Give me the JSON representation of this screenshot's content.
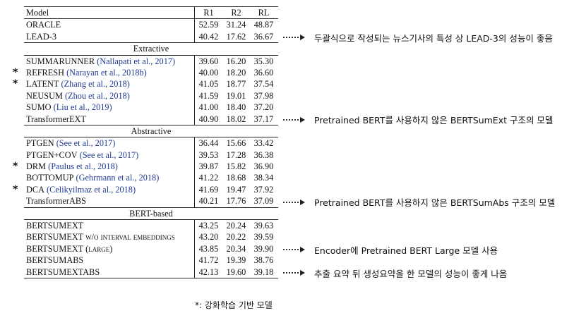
{
  "table": {
    "headers": [
      "Model",
      "R1",
      "R2",
      "RL"
    ],
    "groups": [
      {
        "title": "",
        "rows": [
          {
            "name": "ORACLE",
            "cite": "",
            "r1": "52.59",
            "r2": "31.24",
            "rl": "48.87",
            "sc": true,
            "star": false
          },
          {
            "name": "LEAD-3",
            "cite": "",
            "r1": "40.42",
            "r2": "17.62",
            "rl": "36.67",
            "sc": true,
            "star": false
          }
        ]
      },
      {
        "title": "Extractive",
        "rows": [
          {
            "name": "SUMMARUNNER",
            "cite": "(Nallapati et al., 2017)",
            "r1": "39.60",
            "r2": "16.20",
            "rl": "35.30",
            "sc": true,
            "star": false
          },
          {
            "name": "REFRESH",
            "cite": "(Narayan et al., 2018b)",
            "r1": "40.00",
            "r2": "18.20",
            "rl": "36.60",
            "sc": true,
            "star": true
          },
          {
            "name": "LATENT",
            "cite": "(Zhang et al., 2018)",
            "r1": "41.05",
            "r2": "18.77",
            "rl": "37.54",
            "sc": true,
            "star": true
          },
          {
            "name": "NEUSUM",
            "cite": "(Zhou et al., 2018)",
            "r1": "41.59",
            "r2": "19.01",
            "rl": "37.98",
            "sc": true,
            "star": false
          },
          {
            "name": "SUMO",
            "cite": "(Liu et al., 2019)",
            "r1": "41.00",
            "r2": "18.40",
            "rl": "37.20",
            "sc": true,
            "star": false
          },
          {
            "name": "TransformerEXT",
            "cite": "",
            "r1": "40.90",
            "r2": "18.02",
            "rl": "37.17",
            "sc": false,
            "star": false
          }
        ]
      },
      {
        "title": "Abstractive",
        "rows": [
          {
            "name": "PTGEN",
            "cite": "(See et al., 2017)",
            "r1": "36.44",
            "r2": "15.66",
            "rl": "33.42",
            "sc": true,
            "star": false
          },
          {
            "name": "PTGEN+COV",
            "cite": "(See et al., 2017)",
            "r1": "39.53",
            "r2": "17.28",
            "rl": "36.38",
            "sc": true,
            "star": false
          },
          {
            "name": "DRM",
            "cite": "(Paulus et al., 2018)",
            "r1": "39.87",
            "r2": "15.82",
            "rl": "36.90",
            "sc": true,
            "star": true
          },
          {
            "name": "BOTTOMUP",
            "cite": "(Gehrmann et al., 2018)",
            "r1": "41.22",
            "r2": "18.68",
            "rl": "38.34",
            "sc": true,
            "star": false
          },
          {
            "name": "DCA",
            "cite": "(Celikyilmaz et al., 2018)",
            "r1": "41.69",
            "r2": "19.47",
            "rl": "37.92",
            "sc": true,
            "star": true
          },
          {
            "name": "TransformerABS",
            "cite": "",
            "r1": "40.21",
            "r2": "17.76",
            "rl": "37.09",
            "sc": false,
            "star": false
          }
        ]
      },
      {
        "title": "BERT-based",
        "rows": [
          {
            "name": "BERTSUMEXT",
            "cite": "",
            "r1": "43.25",
            "r2": "20.24",
            "rl": "39.63",
            "sc": true,
            "star": false
          },
          {
            "name": "BERTSUMEXT w/o interval embeddings",
            "cite": "",
            "r1": "43.20",
            "r2": "20.22",
            "rl": "39.59",
            "sc": true,
            "star": false
          },
          {
            "name": "BERTSUMEXT (large)",
            "cite": "",
            "r1": "43.85",
            "r2": "20.34",
            "rl": "39.90",
            "sc": true,
            "star": false
          },
          {
            "name": "BERTSUMABS",
            "cite": "",
            "r1": "41.72",
            "r2": "19.39",
            "rl": "38.76",
            "sc": true,
            "star": false
          },
          {
            "name": "BERTSUMEXTABS",
            "cite": "",
            "r1": "42.13",
            "r2": "19.60",
            "rl": "39.18",
            "sc": true,
            "star": false
          }
        ]
      }
    ]
  },
  "star_symbol": "*",
  "annotations": [
    {
      "row": "LEAD-3",
      "text": "두괄식으로 작성되는 뉴스기사의 특성 상 LEAD-3의 성능이 좋음"
    },
    {
      "row": "TransformerEXT",
      "text": "Pretrained BERT를 사용하지 않은 BERTSumExt 구조의 모델"
    },
    {
      "row": "TransformerABS",
      "text": "Pretrained BERT를 사용하지 않은 BERTSumAbs 구조의 모델"
    },
    {
      "row": "BERTSUMEXT (large)",
      "text": "Encoder에 Pretrained BERT Large 모델 사용"
    },
    {
      "row": "BERTSUMEXTABS",
      "text": "추출 요약 뒤 생성요약을 한 모델의 성능이 좋게 나옴"
    }
  ],
  "legend": "*: 강화학습 기반 모델"
}
